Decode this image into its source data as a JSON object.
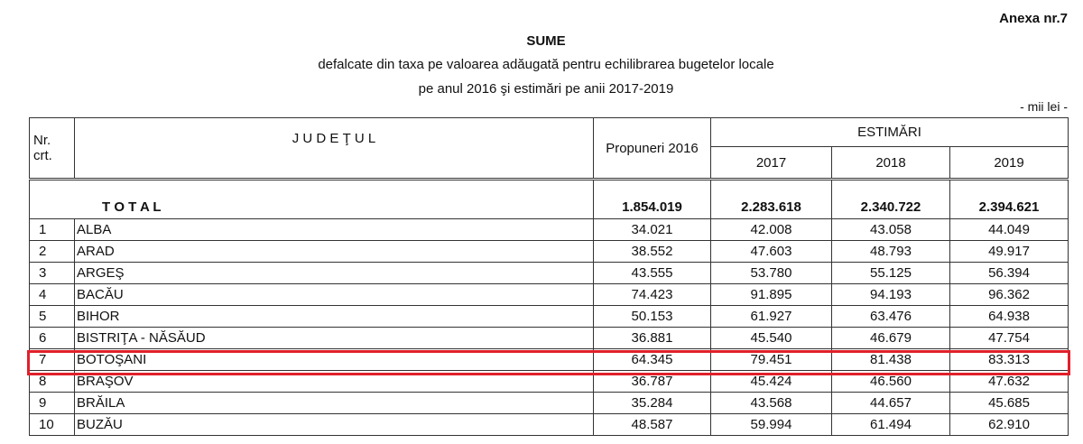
{
  "annex": "Anexa nr.7",
  "title": "SUME",
  "subtitle1": "defalcate din taxa pe valoarea adăugată pentru echilibrarea bugetelor locale",
  "subtitle2": "pe anul 2016 şi estimări pe anii 2017-2019",
  "unit": "- mii lei -",
  "headers": {
    "nr": "Nr. crt.",
    "judet": "J U D E Ţ U L",
    "propuneri": "Propuneri 2016",
    "estimari": "ESTIMĂRI",
    "y2017": "2017",
    "y2018": "2018",
    "y2019": "2019"
  },
  "total": {
    "label": "T O T A L",
    "p2016": "1.854.019",
    "e2017": "2.283.618",
    "e2018": "2.340.722",
    "e2019": "2.394.621"
  },
  "rows": [
    {
      "nr": "1",
      "judet": "ALBA",
      "p2016": "34.021",
      "e2017": "42.008",
      "e2018": "43.058",
      "e2019": "44.049"
    },
    {
      "nr": "2",
      "judet": "ARAD",
      "p2016": "38.552",
      "e2017": "47.603",
      "e2018": "48.793",
      "e2019": "49.917"
    },
    {
      "nr": "3",
      "judet": "ARGEŞ",
      "p2016": "43.555",
      "e2017": "53.780",
      "e2018": "55.125",
      "e2019": "56.394"
    },
    {
      "nr": "4",
      "judet": "BACĂU",
      "p2016": "74.423",
      "e2017": "91.895",
      "e2018": "94.193",
      "e2019": "96.362"
    },
    {
      "nr": "5",
      "judet": "BIHOR",
      "p2016": "50.153",
      "e2017": "61.927",
      "e2018": "63.476",
      "e2019": "64.938"
    },
    {
      "nr": "6",
      "judet": "BISTRIŢA - NĂSĂUD",
      "p2016": "36.881",
      "e2017": "45.540",
      "e2018": "46.679",
      "e2019": "47.754"
    },
    {
      "nr": "7",
      "judet": "BOTOŞANI",
      "p2016": "64.345",
      "e2017": "79.451",
      "e2018": "81.438",
      "e2019": "83.313"
    },
    {
      "nr": "8",
      "judet": "BRAŞOV",
      "p2016": "36.787",
      "e2017": "45.424",
      "e2018": "46.560",
      "e2019": "47.632"
    },
    {
      "nr": "9",
      "judet": "BRĂILA",
      "p2016": "35.284",
      "e2017": "43.568",
      "e2018": "44.657",
      "e2019": "45.685"
    },
    {
      "nr": "10",
      "judet": "BUZĂU",
      "p2016": "48.587",
      "e2017": "59.994",
      "e2018": "61.494",
      "e2019": "62.910"
    }
  ],
  "highlight_color": "#e0202a"
}
